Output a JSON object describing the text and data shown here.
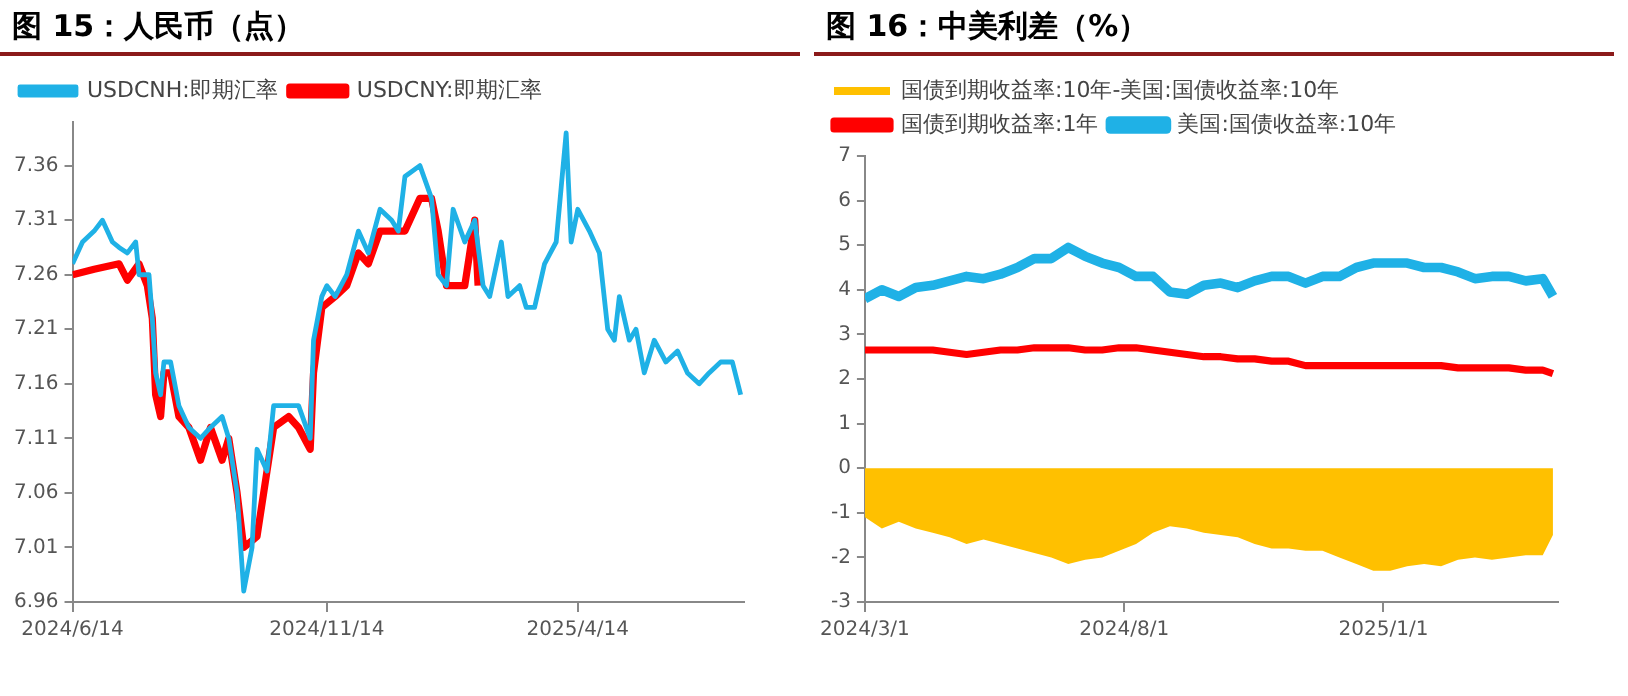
{
  "chart_data": [
    {
      "type": "line",
      "title": "图 15：人民币（点）",
      "legend": "top left",
      "grid": false,
      "xlim": [
        "2024-06-14",
        "2025-07-23"
      ],
      "xticks": [
        {
          "value": "2024-06-14",
          "label": "2024/6/14"
        },
        {
          "value": "2024-11-14",
          "label": "2024/11/14"
        },
        {
          "value": "2025-04-14",
          "label": "2025/4/14"
        }
      ],
      "ylim": [
        6.96,
        7.4
      ],
      "yticks": [
        6.96,
        7.01,
        7.06,
        7.11,
        7.16,
        7.21,
        7.26,
        7.31,
        7.36
      ],
      "series": [
        {
          "name": "USDCNH:即期汇率",
          "color": "#1fb1e6",
          "x": [
            "2024-06-14",
            "2024-06-20",
            "2024-06-27",
            "2024-07-02",
            "2024-07-08",
            "2024-07-12",
            "2024-07-17",
            "2024-07-22",
            "2024-07-24",
            "2024-07-30",
            "2024-08-01",
            "2024-08-03",
            "2024-08-06",
            "2024-08-08",
            "2024-08-12",
            "2024-08-17",
            "2024-08-23",
            "2024-08-30",
            "2024-09-05",
            "2024-09-12",
            "2024-09-16",
            "2024-09-21",
            "2024-09-25",
            "2024-09-30",
            "2024-10-03",
            "2024-10-09",
            "2024-10-13",
            "2024-10-22",
            "2024-10-28",
            "2024-11-04",
            "2024-11-06",
            "2024-11-11",
            "2024-11-14",
            "2024-11-19",
            "2024-11-26",
            "2024-12-03",
            "2024-12-09",
            "2024-12-16",
            "2024-12-23",
            "2024-12-27",
            "2024-12-31",
            "2025-01-09",
            "2025-01-16",
            "2025-01-20",
            "2025-01-25",
            "2025-01-29",
            "2025-02-05",
            "2025-02-11",
            "2025-02-16",
            "2025-02-20",
            "2025-02-27",
            "2025-03-03",
            "2025-03-10",
            "2025-03-14",
            "2025-03-19",
            "2025-03-25",
            "2025-04-01",
            "2025-04-04",
            "2025-04-07",
            "2025-04-10",
            "2025-04-14",
            "2025-04-21",
            "2025-04-27",
            "2025-05-02",
            "2025-05-06",
            "2025-05-09",
            "2025-05-15",
            "2025-05-19",
            "2025-05-24",
            "2025-05-30",
            "2025-06-06",
            "2025-06-13",
            "2025-06-19",
            "2025-06-26",
            "2025-07-02",
            "2025-07-09",
            "2025-07-16",
            "2025-07-21"
          ],
          "values": [
            7.27,
            7.29,
            7.3,
            7.31,
            7.29,
            7.285,
            7.28,
            7.29,
            7.26,
            7.26,
            7.22,
            7.17,
            7.15,
            7.18,
            7.18,
            7.14,
            7.12,
            7.11,
            7.12,
            7.13,
            7.11,
            7.06,
            6.97,
            7.01,
            7.1,
            7.08,
            7.14,
            7.14,
            7.14,
            7.11,
            7.2,
            7.24,
            7.25,
            7.24,
            7.26,
            7.3,
            7.28,
            7.32,
            7.31,
            7.3,
            7.35,
            7.36,
            7.33,
            7.26,
            7.25,
            7.32,
            7.29,
            7.31,
            7.25,
            7.24,
            7.29,
            7.24,
            7.25,
            7.23,
            7.23,
            7.27,
            7.29,
            7.34,
            7.39,
            7.29,
            7.32,
            7.3,
            7.28,
            7.21,
            7.2,
            7.24,
            7.2,
            7.21,
            7.17,
            7.2,
            7.18,
            7.19,
            7.17,
            7.16,
            7.17,
            7.18,
            7.18,
            7.15
          ]
        },
        {
          "name": "USDCNY:即期汇率",
          "color": "#ff0000",
          "x": [
            "2024-06-14",
            "2024-06-27",
            "2024-07-12",
            "2024-07-17",
            "2024-07-24",
            "2024-07-29",
            "2024-08-01",
            "2024-08-03",
            "2024-08-06",
            "2024-08-08",
            "2024-08-12",
            "2024-08-17",
            "2024-08-23",
            "2024-08-30",
            "2024-09-05",
            "2024-09-12",
            "2024-09-16",
            "2024-09-21",
            "2024-09-25",
            "2024-10-03",
            "2024-10-09",
            "2024-10-13",
            "2024-10-22",
            "2024-10-28",
            "2024-11-04",
            "2024-11-06",
            "2024-11-11",
            "2024-11-19",
            "2024-11-26",
            "2024-12-03",
            "2024-12-09",
            "2024-12-16",
            "2024-12-27",
            "2024-12-31",
            "2025-01-09",
            "2025-01-16",
            "2025-01-20",
            "2025-01-25",
            "2025-01-29",
            "2025-02-05",
            "2025-02-11",
            "2025-02-13"
          ],
          "values": [
            7.26,
            7.265,
            7.27,
            7.255,
            7.27,
            7.25,
            7.22,
            7.15,
            7.13,
            7.17,
            7.17,
            7.13,
            7.12,
            7.09,
            7.12,
            7.09,
            7.11,
            7.06,
            7.01,
            7.02,
            7.08,
            7.12,
            7.13,
            7.12,
            7.1,
            7.17,
            7.23,
            7.24,
            7.25,
            7.28,
            7.27,
            7.3,
            7.3,
            7.3,
            7.33,
            7.33,
            7.3,
            7.25,
            7.25,
            7.25,
            7.31,
            7.25
          ]
        }
      ]
    },
    {
      "type": "line",
      "title": "图 16：中美利差（%）",
      "legend": "top left",
      "grid": false,
      "xlim": [
        "2024-03-01",
        "2025-04-14"
      ],
      "xticks": [
        {
          "value": "2024-03-01",
          "label": "2024/3/1"
        },
        {
          "value": "2024-08-01",
          "label": "2024/8/1"
        },
        {
          "value": "2025-01-01",
          "label": "2025/1/1"
        }
      ],
      "ylim": [
        -3,
        7
      ],
      "yticks": [
        -3,
        -2,
        -1,
        0,
        1,
        2,
        3,
        4,
        5,
        6,
        7
      ],
      "x": [
        "2024-03-01",
        "2024-03-11",
        "2024-03-21",
        "2024-03-31",
        "2024-04-10",
        "2024-04-20",
        "2024-04-30",
        "2024-05-10",
        "2024-05-20",
        "2024-05-30",
        "2024-06-09",
        "2024-06-19",
        "2024-06-29",
        "2024-07-09",
        "2024-07-19",
        "2024-07-29",
        "2024-08-08",
        "2024-08-18",
        "2024-08-28",
        "2024-09-07",
        "2024-09-17",
        "2024-09-27",
        "2024-10-07",
        "2024-10-17",
        "2024-10-27",
        "2024-11-06",
        "2024-11-16",
        "2024-11-26",
        "2024-12-06",
        "2024-12-16",
        "2024-12-26",
        "2025-01-05",
        "2025-01-15",
        "2025-01-25",
        "2025-02-04",
        "2025-02-14",
        "2025-02-24",
        "2025-03-06",
        "2025-03-16",
        "2025-03-26",
        "2025-04-05",
        "2025-04-11"
      ],
      "series": [
        {
          "name": "国债到期收益率:10年-美国:国债收益率:10年",
          "type": "area",
          "color": "#ffc000",
          "values": [
            -1.1,
            -1.35,
            -1.2,
            -1.35,
            -1.45,
            -1.55,
            -1.7,
            -1.6,
            -1.7,
            -1.8,
            -1.9,
            -2.0,
            -2.15,
            -2.05,
            -2.0,
            -1.85,
            -1.7,
            -1.45,
            -1.3,
            -1.35,
            -1.45,
            -1.5,
            -1.55,
            -1.7,
            -1.8,
            -1.8,
            -1.85,
            -1.85,
            -2.0,
            -2.15,
            -2.3,
            -2.3,
            -2.2,
            -2.15,
            -2.2,
            -2.05,
            -2.0,
            -2.05,
            -2.0,
            -1.95,
            -1.95,
            -1.5
          ]
        },
        {
          "name": "国债到期收益率:1年",
          "color": "#ff0000",
          "values": [
            2.65,
            2.65,
            2.65,
            2.65,
            2.65,
            2.6,
            2.55,
            2.6,
            2.65,
            2.65,
            2.7,
            2.7,
            2.7,
            2.65,
            2.65,
            2.7,
            2.7,
            2.65,
            2.6,
            2.55,
            2.5,
            2.5,
            2.45,
            2.45,
            2.4,
            2.4,
            2.3,
            2.3,
            2.3,
            2.3,
            2.3,
            2.3,
            2.3,
            2.3,
            2.3,
            2.25,
            2.25,
            2.25,
            2.25,
            2.2,
            2.2,
            2.12
          ]
        },
        {
          "name": "美国:国债收益率:10年",
          "color": "#1fb1e6",
          "values": [
            3.8,
            4.0,
            3.85,
            4.05,
            4.1,
            4.2,
            4.3,
            4.25,
            4.35,
            4.5,
            4.7,
            4.7,
            4.95,
            4.75,
            4.6,
            4.5,
            4.3,
            4.3,
            3.95,
            3.9,
            4.1,
            4.15,
            4.05,
            4.2,
            4.3,
            4.3,
            4.15,
            4.3,
            4.3,
            4.5,
            4.6,
            4.6,
            4.6,
            4.5,
            4.5,
            4.4,
            4.25,
            4.3,
            4.3,
            4.2,
            4.25,
            3.85
          ]
        }
      ]
    }
  ]
}
